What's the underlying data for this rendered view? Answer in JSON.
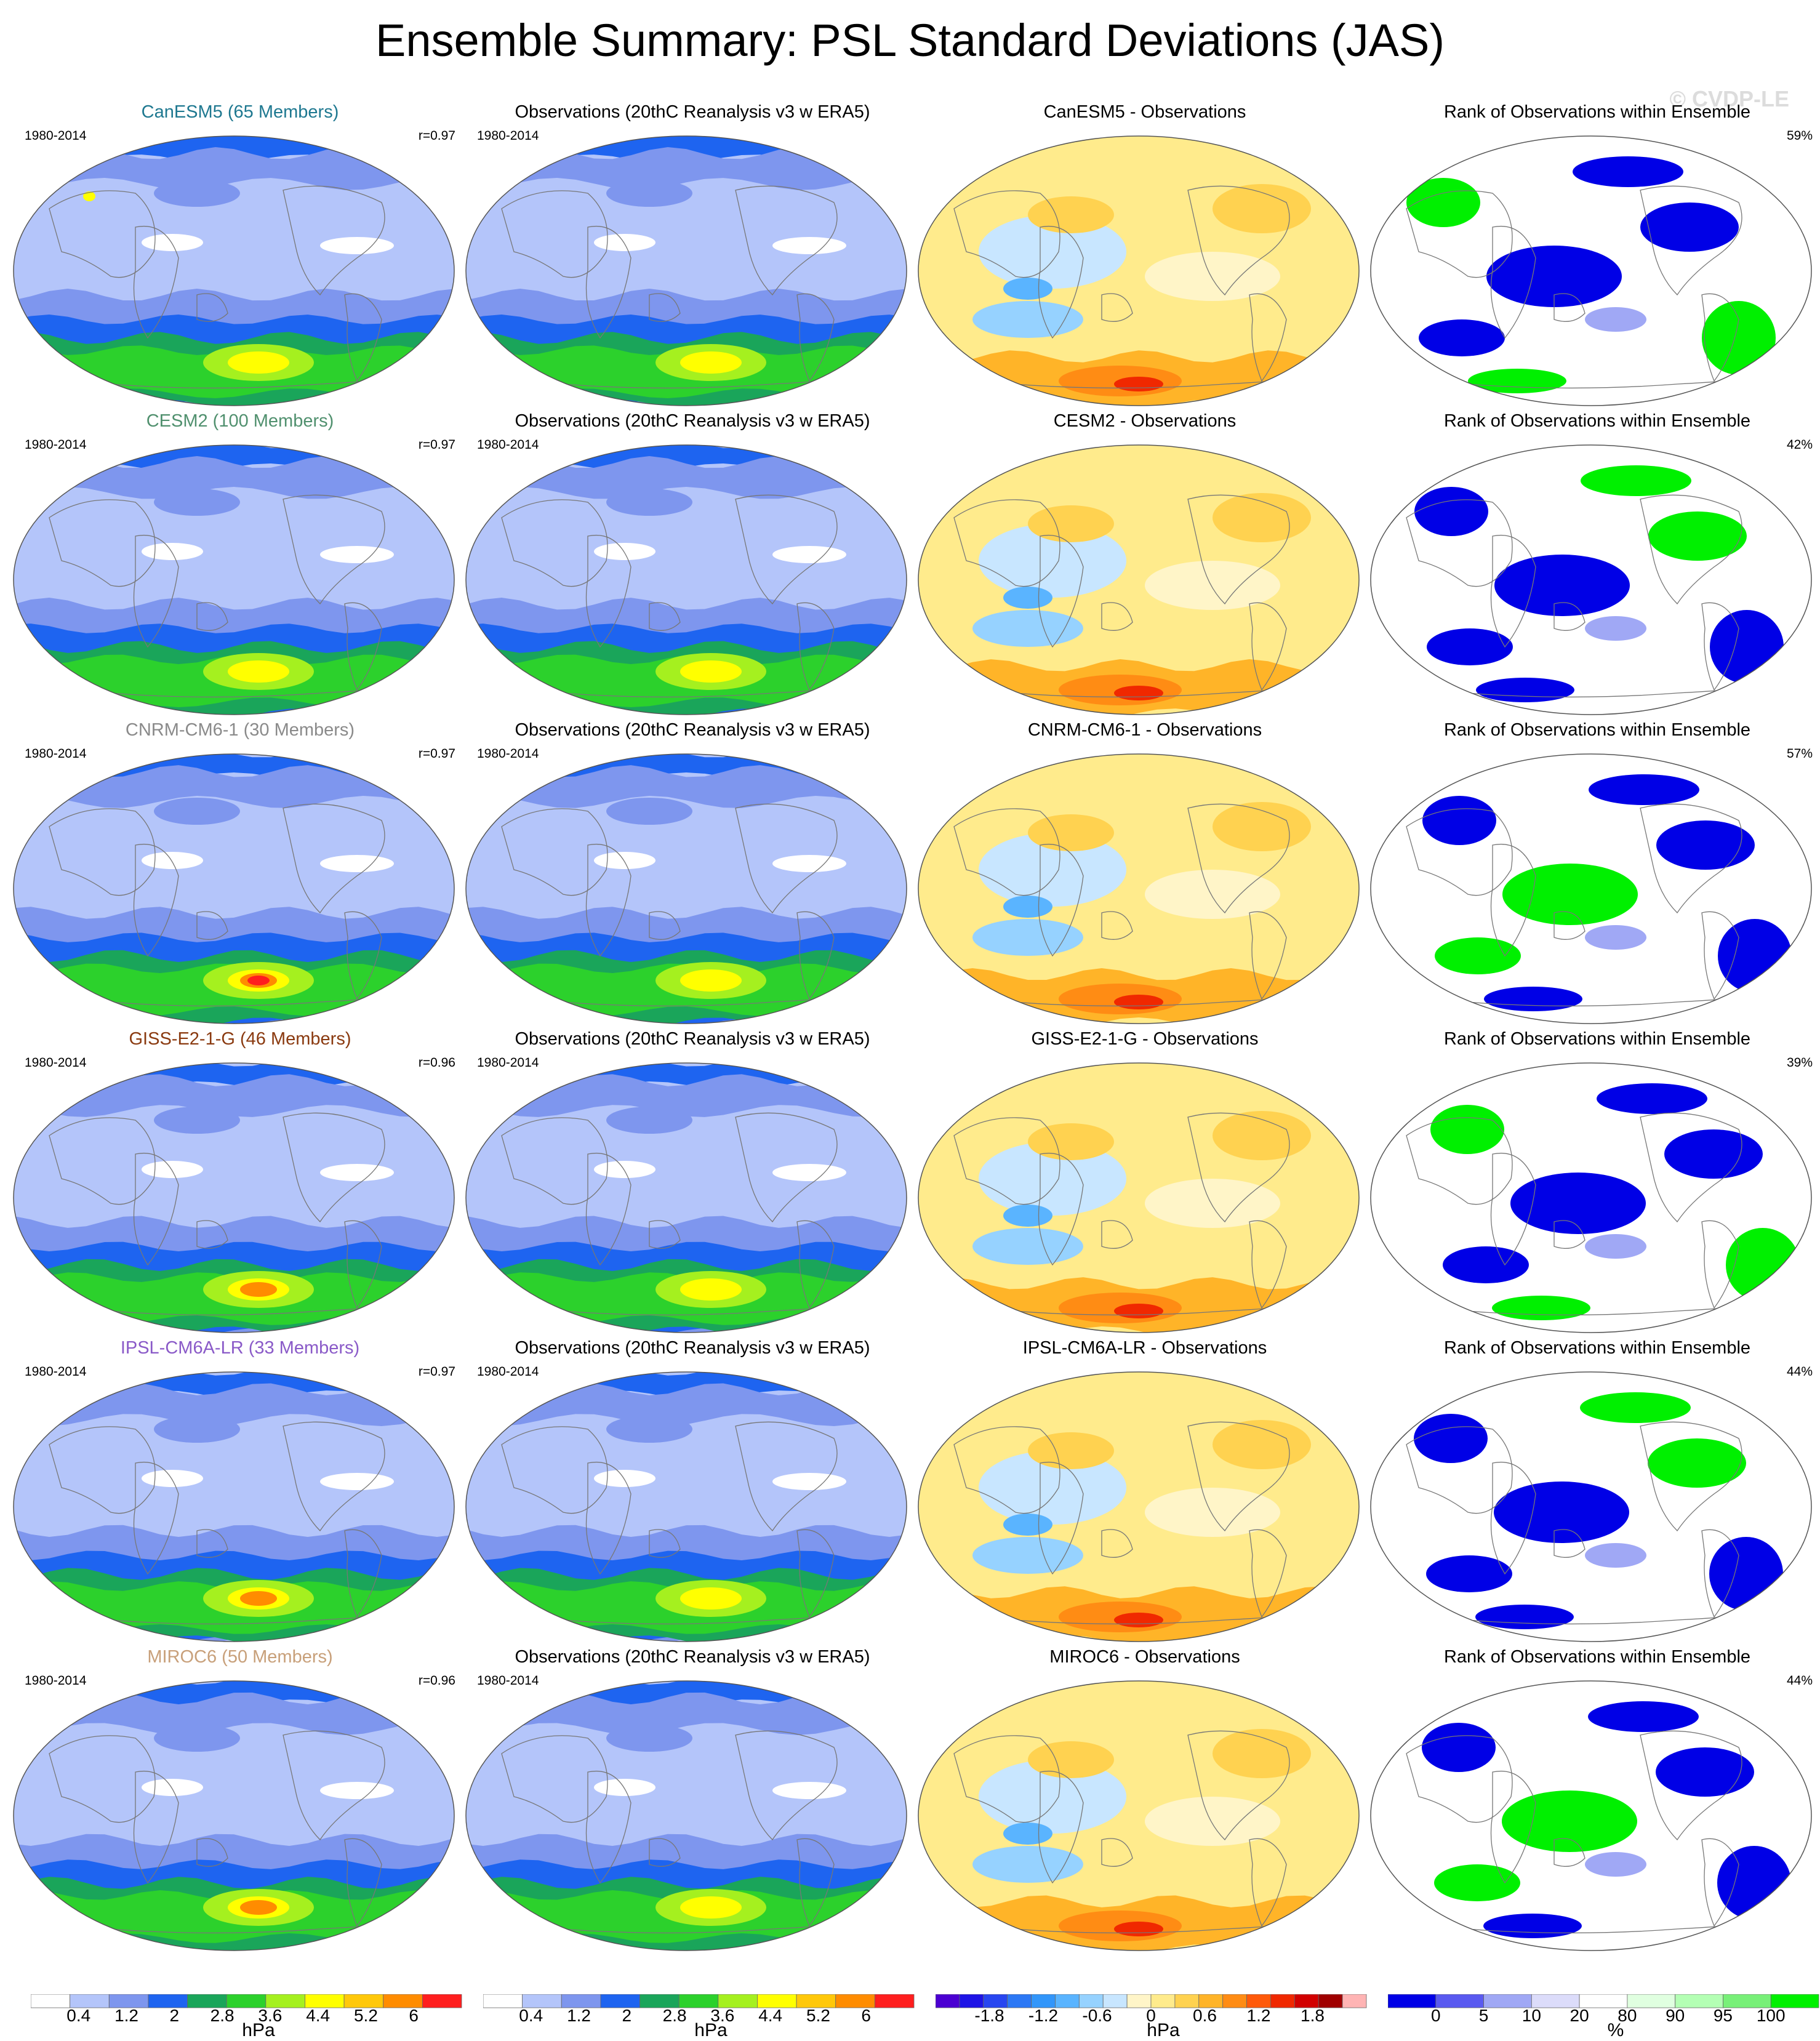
{
  "title": "Ensemble Summary: PSL Standard Deviations (JAS)",
  "watermark": "© CVDP-LE",
  "colors": {
    "std": [
      "#ffffff",
      "#b4c5fa",
      "#7e96ee",
      "#1e64f0",
      "#1aa55a",
      "#2cd12c",
      "#a5f01f",
      "#ffff00",
      "#ffc80a",
      "#ff8c00",
      "#ff1e1e"
    ],
    "diff": [
      "#4b00d2",
      "#1e14e6",
      "#2846f0",
      "#2c78f5",
      "#3296fa",
      "#5ab4ff",
      "#96d2ff",
      "#c8e6ff",
      "#fff5c8",
      "#ffeb8c",
      "#ffd250",
      "#ffb428",
      "#ff8c14",
      "#ff5a0a",
      "#f02800",
      "#d20000",
      "#a00000",
      "#ffb4b4"
    ],
    "rank": [
      "#0000e6",
      "#5a5af0",
      "#a0a8f5",
      "#dcdcfa",
      "#ffffff",
      "#e0ffe0",
      "#b4ffb4",
      "#78f078",
      "#00f000"
    ]
  },
  "rows": [
    {
      "model": {
        "label": "CanESM5 (65 Members)",
        "color": "#1e7890",
        "period": "1980-2014",
        "r": "r=0.97"
      },
      "obs": {
        "label": "Observations (20thC Reanalysis v3 w ERA5)",
        "period": "1980-2014"
      },
      "diff": {
        "label": "CanESM5 - Observations"
      },
      "rank": {
        "label": "Rank of Observations within Ensemble",
        "pct": "59%"
      }
    },
    {
      "model": {
        "label": "CESM2 (100 Members)",
        "color": "#50906e",
        "period": "1980-2014",
        "r": "r=0.97"
      },
      "obs": {
        "label": "Observations (20thC Reanalysis v3 w ERA5)",
        "period": "1980-2014"
      },
      "diff": {
        "label": "CESM2 - Observations"
      },
      "rank": {
        "label": "Rank of Observations within Ensemble",
        "pct": "42%"
      }
    },
    {
      "model": {
        "label": "CNRM-CM6-1 (30 Members)",
        "color": "#8a8a8a",
        "period": "1980-2014",
        "r": "r=0.97"
      },
      "obs": {
        "label": "Observations (20thC Reanalysis v3 w ERA5)",
        "period": "1980-2014"
      },
      "diff": {
        "label": "CNRM-CM6-1 - Observations"
      },
      "rank": {
        "label": "Rank of Observations within Ensemble",
        "pct": "57%"
      }
    },
    {
      "model": {
        "label": "GISS-E2-1-G (46 Members)",
        "color": "#8a3a10",
        "period": "1980-2014",
        "r": "r=0.96"
      },
      "obs": {
        "label": "Observations (20thC Reanalysis v3 w ERA5)",
        "period": "1980-2014"
      },
      "diff": {
        "label": "GISS-E2-1-G - Observations"
      },
      "rank": {
        "label": "Rank of Observations within Ensemble",
        "pct": "39%"
      }
    },
    {
      "model": {
        "label": "IPSL-CM6A-LR (33 Members)",
        "color": "#8a5ac8",
        "period": "1980-2014",
        "r": "r=0.97"
      },
      "obs": {
        "label": "Observations (20thC Reanalysis v3 w ERA5)",
        "period": "1980-2014"
      },
      "diff": {
        "label": "IPSL-CM6A-LR - Observations"
      },
      "rank": {
        "label": "Rank of Observations within Ensemble",
        "pct": "44%"
      }
    },
    {
      "model": {
        "label": "MIROC6 (50 Members)",
        "color": "#c8a07a",
        "period": "1980-2014",
        "r": "r=0.96"
      },
      "obs": {
        "label": "Observations (20thC Reanalysis v3 w ERA5)",
        "period": "1980-2014"
      },
      "diff": {
        "label": "MIROC6 - Observations"
      },
      "rank": {
        "label": "Rank of Observations within Ensemble",
        "pct": "44%"
      }
    }
  ],
  "colorbars": {
    "std": {
      "labels": [
        "0.4",
        "1.2",
        "2",
        "2.8",
        "3.6",
        "4.4",
        "5.2",
        "6"
      ],
      "unit": "hPa"
    },
    "diff": {
      "labels": [
        "-1.8",
        "-1.2",
        "-0.6",
        "0",
        "0.6",
        "1.2",
        "1.8"
      ],
      "unit": "hPa"
    },
    "rank": {
      "labels": [
        "0",
        "5",
        "10",
        "20",
        "80",
        "90",
        "95",
        "100"
      ],
      "unit": "%"
    }
  }
}
